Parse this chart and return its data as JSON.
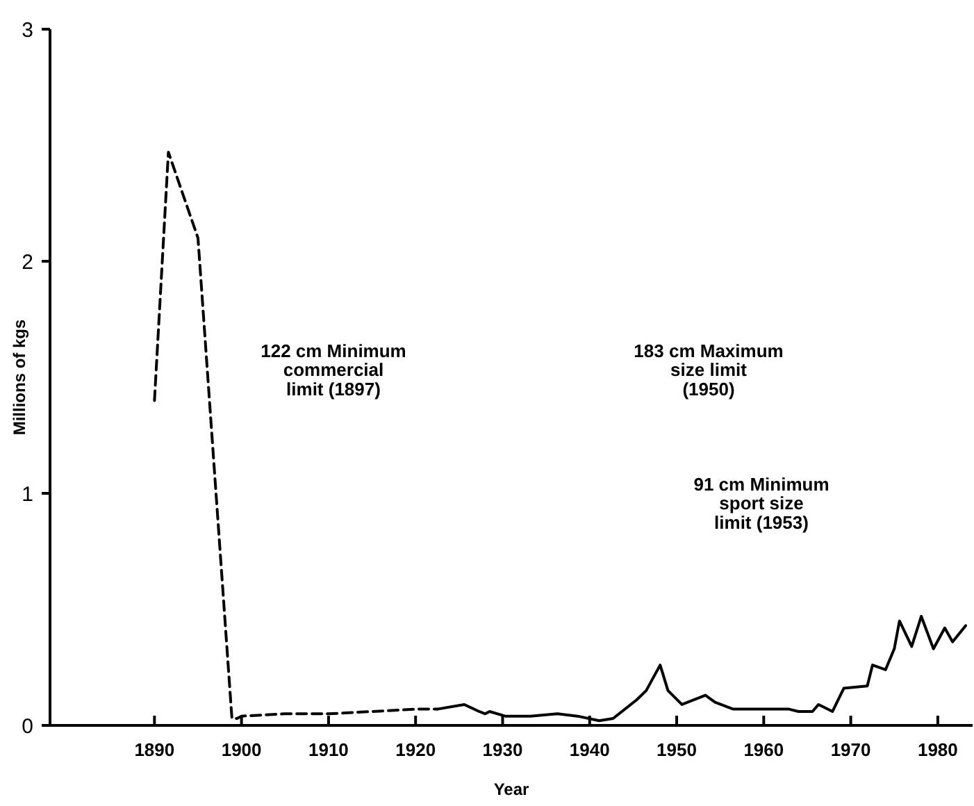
{
  "chart_data": {
    "type": "line",
    "xlabel": "Year",
    "ylabel": "Millions of kgs",
    "xlim": [
      1878,
      1984
    ],
    "ylim": [
      0,
      3
    ],
    "xticks": [
      1890,
      1900,
      1910,
      1920,
      1930,
      1940,
      1950,
      1960,
      1970,
      1980
    ],
    "yticks": [
      0,
      1,
      2,
      3
    ],
    "grid": false,
    "marker": "none",
    "annotations": [
      "122 cm Minimum\ncommercial\nlimit (1897)",
      "183 cm Maximum\nsize limit\n(1950)",
      "91 cm Minimum\nsport size\nlimit (1953)"
    ],
    "series": [
      {
        "color": "#000000",
        "line_style": "dashed",
        "x": [
          1890,
          1891.6,
          1895,
          1898.9,
          1899.5,
          1900,
          1905,
          1910,
          1915,
          1920,
          1922.5
        ],
        "values": [
          1.4,
          2.47,
          2.1,
          0.03,
          0.03,
          0.04,
          0.05,
          0.05,
          0.06,
          0.07,
          0.07
        ]
      },
      {
        "color": "#000000",
        "line_style": "solid",
        "x": [
          1922.5,
          1925.6,
          1927.3,
          1928,
          1928.5,
          1930.3,
          1933.2,
          1936.3,
          1938.6,
          1941.1,
          1942.7,
          1945.4,
          1946.5,
          1948.1,
          1949,
          1950.6,
          1953.3,
          1954.4,
          1956.5,
          1962.9,
          1964,
          1965.6,
          1966.3,
          1967.9,
          1969.2,
          1971.9,
          1972.5,
          1974,
          1975,
          1975.6,
          1977,
          1978.1,
          1979.5,
          1980.8,
          1981.7,
          1983.2
        ],
        "values": [
          0.07,
          0.09,
          0.06,
          0.05,
          0.06,
          0.04,
          0.04,
          0.05,
          0.04,
          0.02,
          0.03,
          0.11,
          0.15,
          0.26,
          0.15,
          0.09,
          0.13,
          0.1,
          0.07,
          0.07,
          0.06,
          0.06,
          0.09,
          0.06,
          0.16,
          0.17,
          0.26,
          0.24,
          0.33,
          0.45,
          0.34,
          0.47,
          0.33,
          0.42,
          0.36,
          0.43
        ]
      }
    ]
  }
}
